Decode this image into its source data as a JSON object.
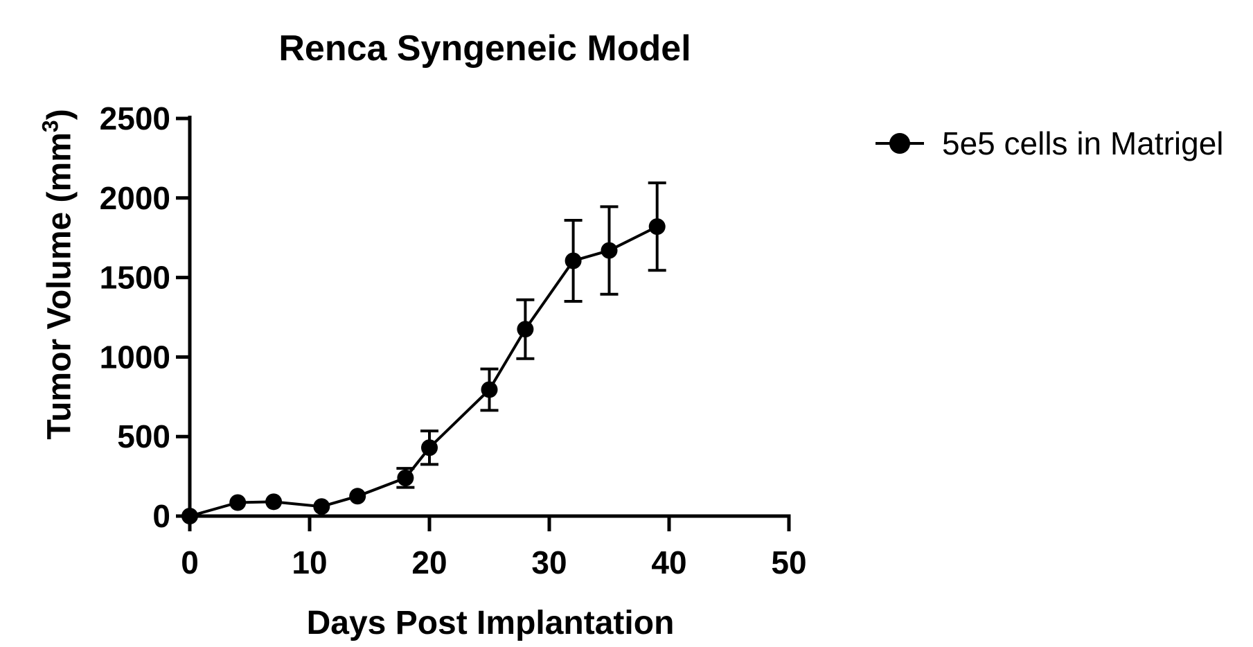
{
  "chart_data": {
    "type": "line",
    "title": "Renca Syngeneic Model",
    "xlabel": "Days Post Implantation",
    "ylabel": "Tumor Volume (mm³)",
    "ylabel_parts": {
      "prefix": "Tumor Volume (mm",
      "sup": "3",
      "suffix": ")"
    },
    "x": [
      0,
      4,
      7,
      11,
      14,
      18,
      20,
      25,
      28,
      32,
      35,
      39
    ],
    "series": [
      {
        "name": "5e5 cells in Matrigel",
        "values": [
          0,
          85,
          90,
          60,
          125,
          240,
          430,
          795,
          1175,
          1605,
          1670,
          1820
        ],
        "error": [
          0,
          0,
          0,
          0,
          0,
          60,
          105,
          130,
          185,
          255,
          275,
          275
        ],
        "color": "#000000",
        "marker": "filled-circle"
      }
    ],
    "xlim": [
      0,
      50
    ],
    "ylim": [
      0,
      2500
    ],
    "xticks": [
      0,
      10,
      20,
      30,
      40,
      50
    ],
    "yticks": [
      0,
      500,
      1000,
      1500,
      2000,
      2500
    ],
    "grid": false,
    "legend_position": "right",
    "background_color": "#ffffff",
    "axis_color": "#000000"
  }
}
